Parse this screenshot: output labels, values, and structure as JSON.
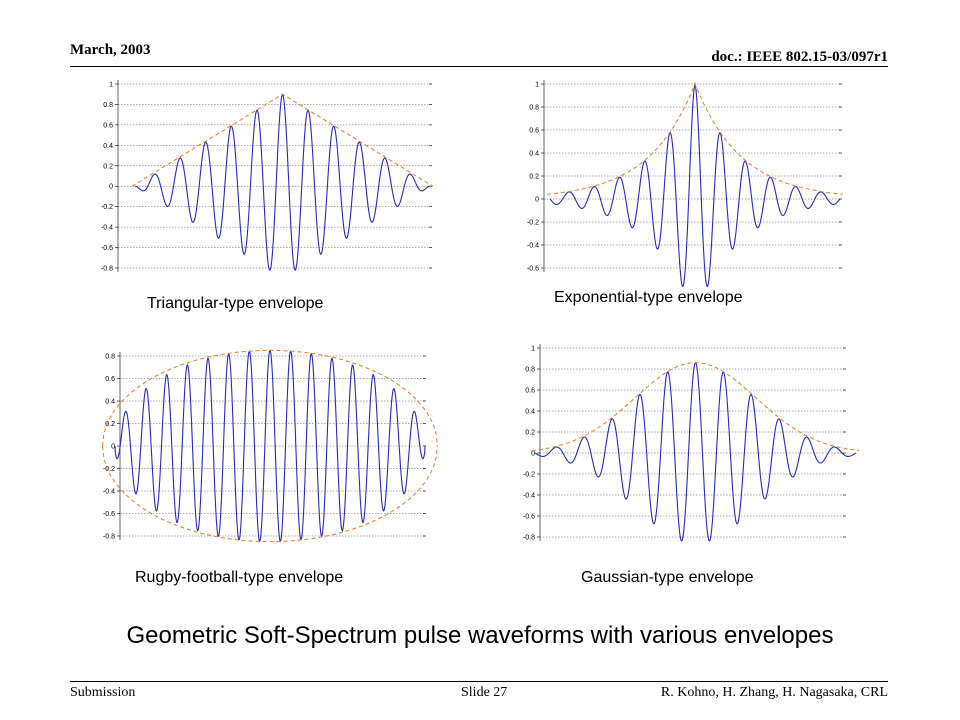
{
  "header": {
    "date": "March, 2003",
    "doc": "doc.: IEEE 802.15-03/097r1"
  },
  "footer": {
    "left": "Submission",
    "center": "Slide 27",
    "right": "R. Kohno, H. Zhang, H. Nagasaka, CRL"
  },
  "title": "Geometric Soft-Spectrum pulse waveforms with various envelopes",
  "chart_data": [
    {
      "type": "line",
      "title": "Triangular-type envelope",
      "envelope": "triangular",
      "yticks": [
        "1",
        "0.8",
        "0.6",
        "0.4",
        "0.2",
        "0",
        "-0.2",
        "-0.4",
        "-0.6",
        "-0.8"
      ],
      "ylim": [
        -0.8,
        1
      ],
      "peak": 0.9,
      "cycles": 11.5,
      "series": [
        {
          "style": "solid",
          "color": "#2a2ab8"
        },
        {
          "style": "dashed",
          "color": "#e8823a"
        }
      ]
    },
    {
      "type": "line",
      "title": "Exponential-type envelope",
      "envelope": "exponential",
      "yticks": [
        "1",
        "0.8",
        "0.6",
        "0.4",
        "0.2",
        "0",
        "-0.2",
        "-0.4",
        "-0.6"
      ],
      "ylim": [
        -0.6,
        1
      ],
      "peak": 1.0,
      "cycles": 11.5,
      "series": [
        {
          "style": "solid",
          "color": "#2a2ab8"
        },
        {
          "style": "dashed",
          "color": "#e8823a"
        }
      ]
    },
    {
      "type": "line",
      "title": "Rugby-football-type envelope",
      "envelope": "rugby",
      "yticks": [
        "0.8",
        "0.6",
        "0.4",
        "0.2",
        "0",
        "-0.2",
        "-0.4",
        "-0.6",
        "-0.8"
      ],
      "ylim": [
        -0.8,
        0.8
      ],
      "peak": 0.85,
      "cycles": 15,
      "series": [
        {
          "style": "solid",
          "color": "#2a2ab8"
        },
        {
          "style": "dashed",
          "color": "#e8823a"
        }
      ]
    },
    {
      "type": "line",
      "title": "Gaussian-type envelope",
      "envelope": "gaussian",
      "yticks": [
        "1",
        "0.8",
        "0.6",
        "0.4",
        "0.2",
        "0",
        "-0.2",
        "-0.4",
        "-0.6",
        "-0.8"
      ],
      "ylim": [
        -0.8,
        1
      ],
      "peak": 0.86,
      "cycles": 11.5,
      "series": [
        {
          "style": "solid",
          "color": "#2a2ab8"
        },
        {
          "style": "dashed",
          "color": "#e8823a"
        }
      ]
    }
  ]
}
